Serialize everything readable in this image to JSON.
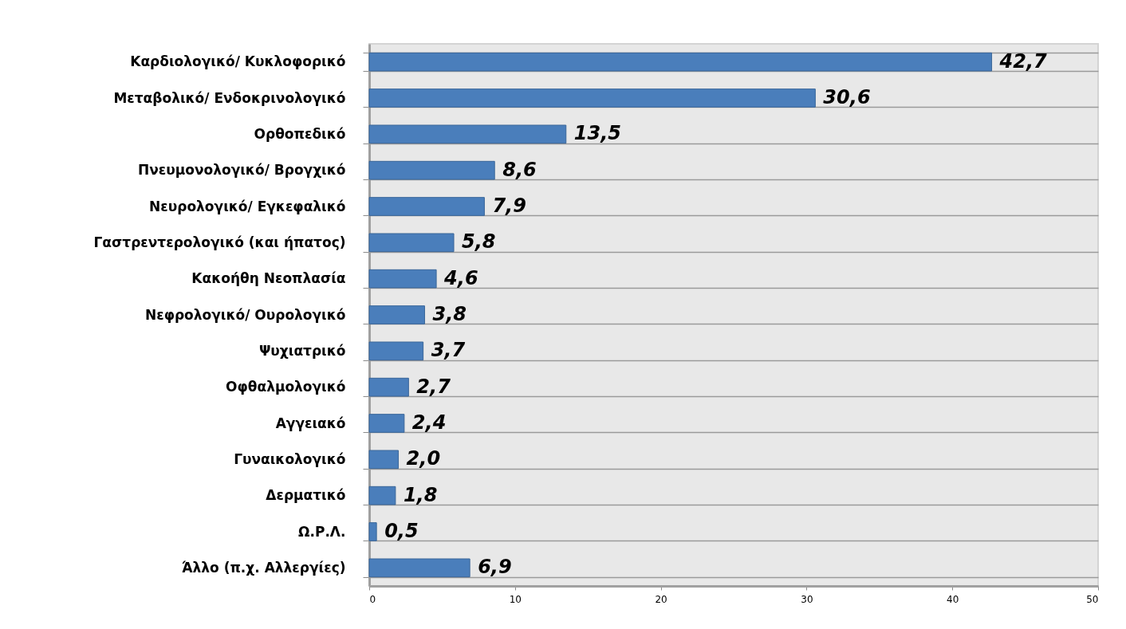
{
  "chart_data": {
    "type": "bar",
    "orientation": "horizontal",
    "categories": [
      "Καρδιολογικό/ Κυκλοφορικό",
      "Μεταβολικό/ Ενδοκρινολογικό",
      "Ορθοπεδικό",
      "Πνευμονολογικό/ Βρογχικό",
      "Νευρολογικό/ Εγκεφαλικό",
      "Γαστρεντερολογικό (και ήπατος)",
      "Κακοήθη Νεοπλασία",
      "Νεφρολογικό/ Ουρολογικό",
      "Ψυχιατρικό",
      "Οφθαλμολογικό",
      "Αγγειακό",
      "Γυναικολογικό",
      "Δερματικό",
      "Ω.Ρ.Λ.",
      "Άλλο (π.χ. Αλλεργίες)"
    ],
    "values": [
      42.7,
      30.6,
      13.5,
      8.6,
      7.9,
      5.8,
      4.6,
      3.8,
      3.7,
      2.7,
      2.4,
      2.0,
      1.8,
      0.5,
      6.9
    ],
    "value_labels": [
      "42,7",
      "30,6",
      "13,5",
      "8,6",
      "7,9",
      "5,8",
      "4,6",
      "3,8",
      "3,7",
      "2,7",
      "2,4",
      "2,0",
      "1,8",
      "0,5",
      "6,9"
    ],
    "color": "#4a7ebb",
    "xlim": [
      0,
      50
    ],
    "xticks": [
      0,
      10,
      20,
      30,
      40,
      50
    ],
    "grid": "y"
  }
}
